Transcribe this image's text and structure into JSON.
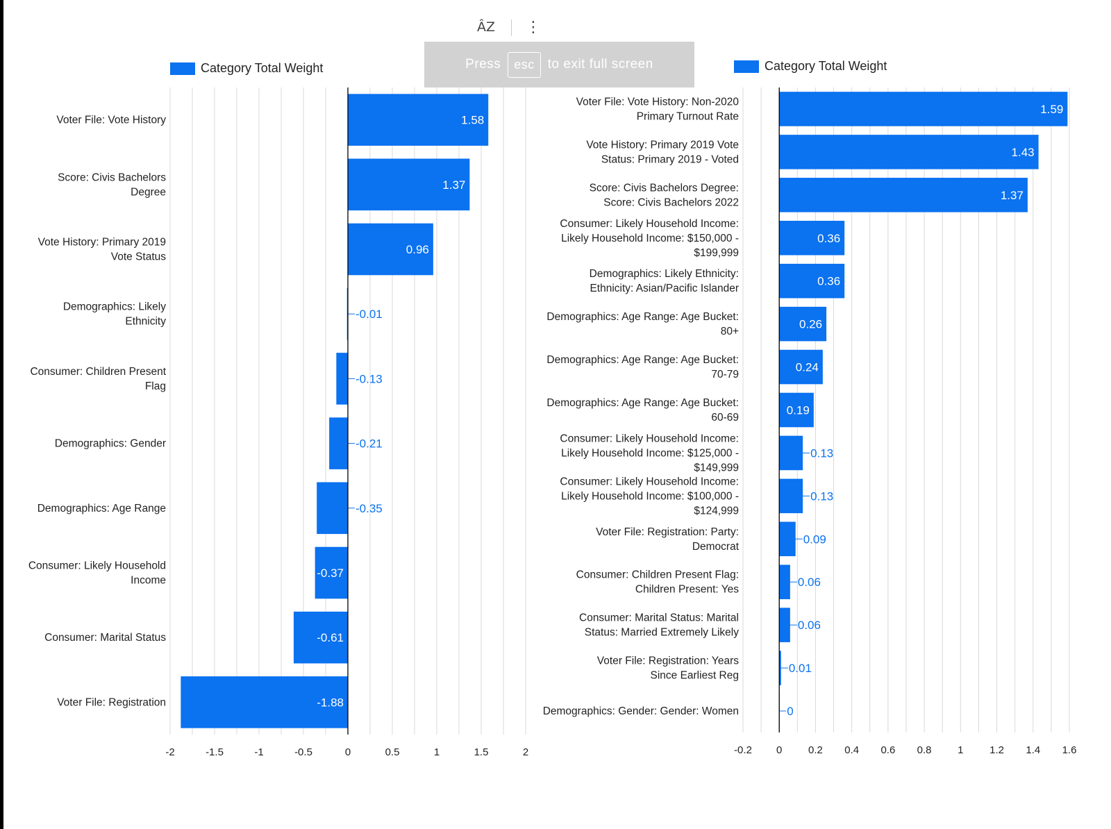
{
  "toolbar": {
    "sort_icon_glyph": "ÂZ",
    "more_icon_glyph": "⋮"
  },
  "toast": {
    "prefix": "Press",
    "key": "esc",
    "suffix": "to exit full screen"
  },
  "colors": {
    "bar": "#0b72f0",
    "grid": "#d9d9d9",
    "axis": "#000000",
    "label": "#222222"
  },
  "chart_data": [
    {
      "type": "bar",
      "orientation": "horizontal",
      "legend": "Category Total Weight",
      "series": [
        {
          "name": "Category Total Weight"
        }
      ],
      "categories": [
        "Voter File: Vote History",
        "Score: Civis Bachelors Degree",
        "Vote History: Primary 2019 Vote Status",
        "Demographics: Likely Ethnicity",
        "Consumer: Children Present Flag",
        "Demographics: Gender",
        "Demographics: Age Range",
        "Consumer: Likely Household Income",
        "Consumer: Marital Status",
        "Voter File: Registration"
      ],
      "values": [
        1.58,
        1.37,
        0.96,
        -0.01,
        -0.13,
        -0.21,
        -0.35,
        -0.37,
        -0.61,
        -1.88
      ],
      "value_labels": [
        "1.58",
        "1.37",
        "0.96",
        "-0.01",
        "-0.13",
        "-0.21",
        "-0.35",
        "-0.37",
        "-0.61",
        "-1.88"
      ],
      "xlim": [
        -2,
        2
      ],
      "xticks": [
        -2,
        -1.5,
        -1,
        -0.5,
        0,
        0.5,
        1,
        1.5,
        2
      ],
      "xtick_labels": [
        "-2",
        "-1.5",
        "-1",
        "-0.5",
        "0",
        "0.5",
        "1",
        "1.5",
        "2"
      ],
      "grid": true
    },
    {
      "type": "bar",
      "orientation": "horizontal",
      "legend": "Category Total Weight",
      "series": [
        {
          "name": "Category Total Weight"
        }
      ],
      "categories": [
        "Voter File: Vote History: Non-2020 Primary Turnout Rate",
        "Vote History: Primary 2019 Vote Status: Primary 2019 - Voted",
        "Score: Civis Bachelors Degree: Score: Civis Bachelors 2022",
        "Consumer: Likely Household Income: Likely Household Income: $150,000 - $199,999",
        "Demographics: Likely Ethnicity: Ethnicity: Asian/Pacific Islander",
        "Demographics: Age Range: Age Bucket: 80+",
        "Demographics: Age Range: Age Bucket: 70-79",
        "Demographics: Age Range: Age Bucket: 60-69",
        "Consumer: Likely Household Income: Likely Household Income: $125,000 - $149,999",
        "Consumer: Likely Household Income: Likely Household Income: $100,000 - $124,999",
        "Voter File: Registration: Party: Democrat",
        "Consumer: Children Present Flag: Children Present: Yes",
        "Consumer: Marital Status: Marital Status: Married Extremely Likely",
        "Voter File: Registration: Years Since Earliest Reg",
        "Demographics: Gender: Gender: Women"
      ],
      "values": [
        1.59,
        1.43,
        1.37,
        0.36,
        0.36,
        0.26,
        0.24,
        0.19,
        0.13,
        0.13,
        0.09,
        0.06,
        0.06,
        0.01,
        0
      ],
      "value_labels": [
        "1.59",
        "1.43",
        "1.37",
        "0.36",
        "0.36",
        "0.26",
        "0.24",
        "0.19",
        "0.13",
        "0.13",
        "0.09",
        "0.06",
        "0.06",
        "0.01",
        "0"
      ],
      "xlim": [
        -0.2,
        1.6
      ],
      "xticks": [
        -0.2,
        0,
        0.2,
        0.4,
        0.6,
        0.8,
        1,
        1.2,
        1.4,
        1.6
      ],
      "xtick_labels": [
        "-0.2",
        "0",
        "0.2",
        "0.4",
        "0.6",
        "0.8",
        "1",
        "1.2",
        "1.4",
        "1.6"
      ],
      "grid": true
    }
  ]
}
